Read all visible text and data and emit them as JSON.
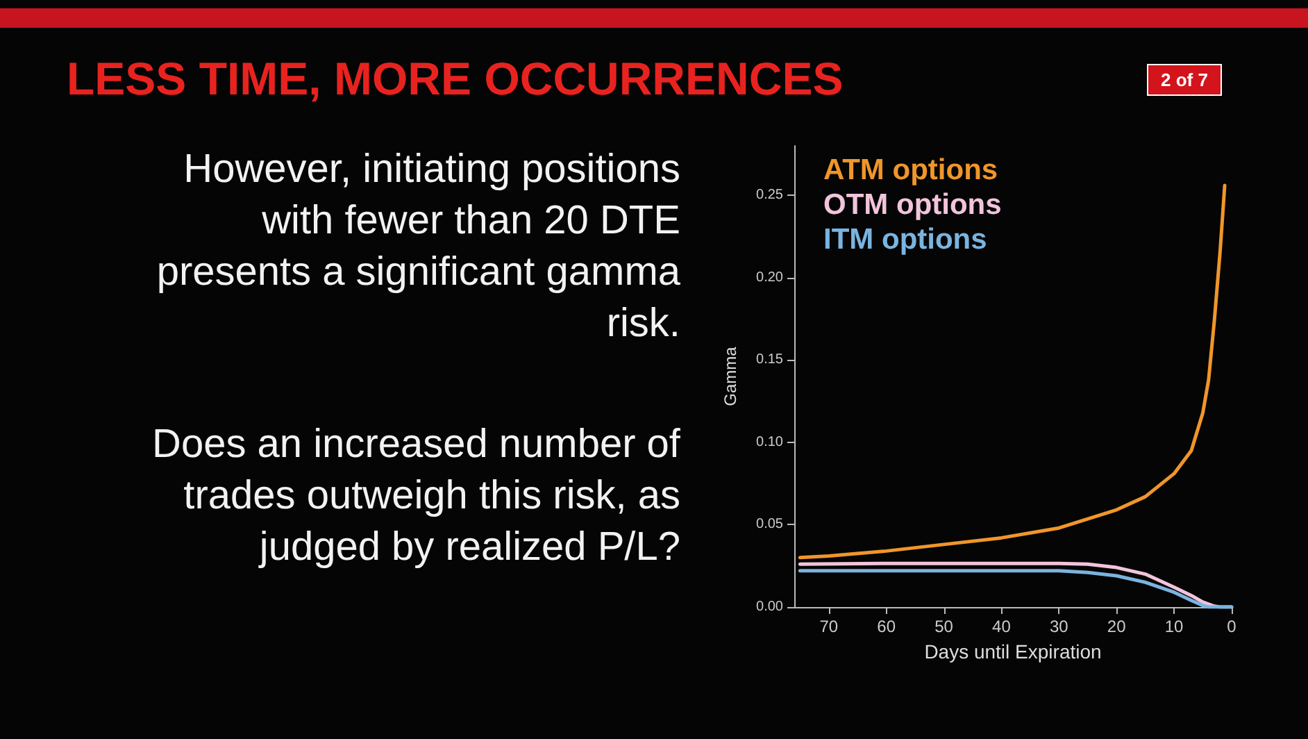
{
  "chart_data": {
    "type": "line",
    "title": "LESS TIME, MORE OCCURRENCES",
    "annotations": [
      "2 of 7",
      "However, initiating positions with fewer than 20 DTE presents a significant gamma risk.",
      "Does an increased number of trades outweigh this risk, as judged by realized P/L?"
    ],
    "xlabel": "Days until Expiration",
    "ylabel": "Gamma",
    "x": [
      75,
      70,
      60,
      50,
      40,
      30,
      20,
      15,
      10,
      7,
      5,
      4,
      3,
      2,
      1.2
    ],
    "series": [
      {
        "name": "ATM options",
        "color": "#f0962a",
        "values": [
          0.03,
          0.031,
          0.034,
          0.038,
          0.042,
          0.048,
          0.059,
          0.067,
          0.081,
          0.095,
          0.118,
          0.138,
          0.174,
          0.216,
          0.256
        ]
      },
      {
        "name": "OTM options",
        "color": "#f2c4dc",
        "x": [
          75,
          60,
          40,
          30,
          25,
          20,
          15,
          10,
          7,
          5,
          3,
          2,
          0
        ],
        "values": [
          0.026,
          0.0265,
          0.0265,
          0.0265,
          0.026,
          0.024,
          0.02,
          0.012,
          0.007,
          0.003,
          0.0005,
          0,
          0
        ]
      },
      {
        "name": "ITM options",
        "color": "#7ab4e0",
        "x": [
          75,
          60,
          40,
          30,
          25,
          20,
          15,
          10,
          7,
          5,
          4,
          2,
          0
        ],
        "values": [
          0.022,
          0.022,
          0.022,
          0.022,
          0.021,
          0.019,
          0.015,
          0.009,
          0.004,
          0.001,
          0,
          0,
          0
        ]
      }
    ],
    "xlim": [
      76,
      0
    ],
    "ylim": [
      0,
      0.28
    ],
    "xticks": [
      70,
      60,
      50,
      40,
      30,
      20,
      10,
      0
    ],
    "yticks": [
      {
        "value": 0,
        "label": "0.00"
      },
      {
        "value": 0.05,
        "label": "0.05"
      },
      {
        "value": 0.1,
        "label": "0.10"
      },
      {
        "value": 0.15,
        "label": "0.15"
      },
      {
        "value": 0.2,
        "label": "0.20"
      },
      {
        "value": 0.25,
        "label": "0.25"
      }
    ],
    "grid": false,
    "legend": "top left",
    "marker": "none",
    "line_style": "solid"
  }
}
